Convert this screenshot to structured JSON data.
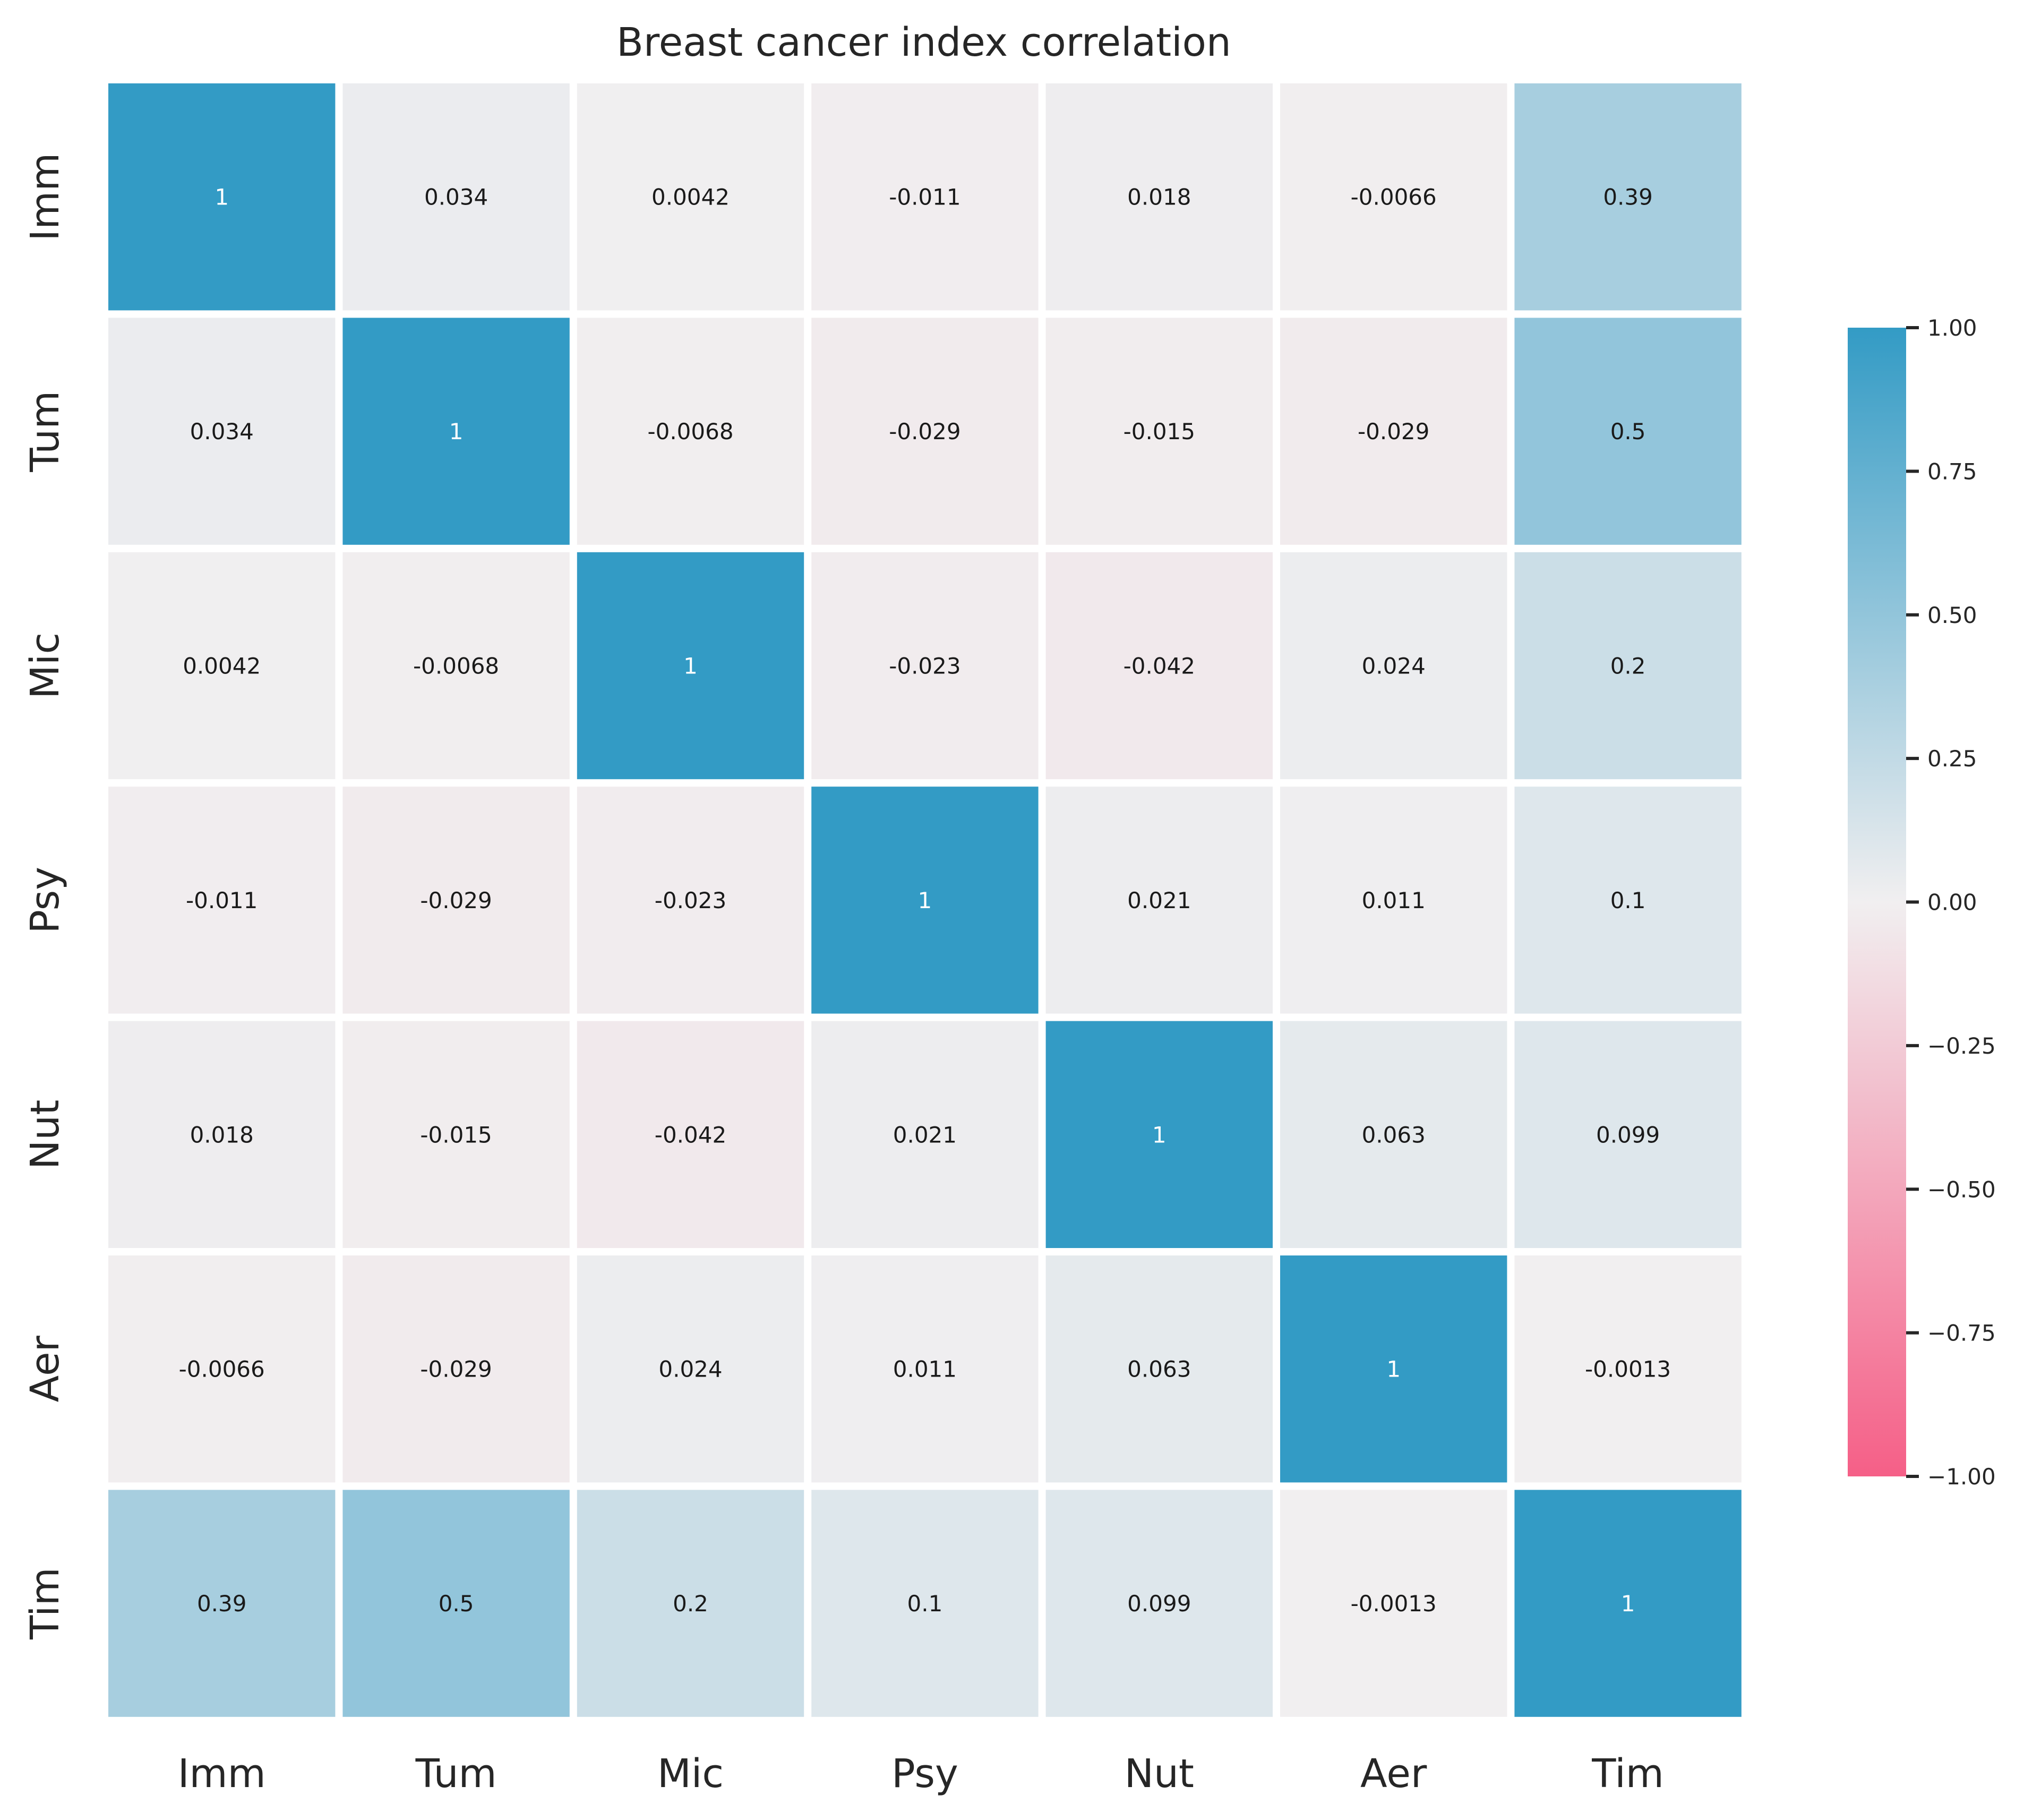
{
  "chart_data": {
    "type": "heatmap",
    "title": "Breast cancer index correlation",
    "x_labels": [
      "Imm",
      "Tum",
      "Mic",
      "Psy",
      "Nut",
      "Aer",
      "Tim"
    ],
    "y_labels": [
      "Imm",
      "Tum",
      "Mic",
      "Psy",
      "Nut",
      "Aer",
      "Tim"
    ],
    "values": [
      [
        1,
        0.034,
        0.0042,
        -0.011,
        0.018,
        -0.0066,
        0.39
      ],
      [
        0.034,
        1,
        -0.0068,
        -0.029,
        -0.015,
        -0.029,
        0.5
      ],
      [
        0.0042,
        -0.0068,
        1,
        -0.023,
        -0.042,
        0.024,
        0.2
      ],
      [
        -0.011,
        -0.029,
        -0.023,
        1,
        0.021,
        0.011,
        0.1
      ],
      [
        0.018,
        -0.015,
        -0.042,
        0.021,
        1,
        0.063,
        0.099
      ],
      [
        -0.0066,
        -0.029,
        0.024,
        0.011,
        0.063,
        1,
        -0.0013
      ],
      [
        0.39,
        0.5,
        0.2,
        0.1,
        0.099,
        -0.0013,
        1
      ]
    ],
    "cell_labels": [
      [
        "1",
        "0.034",
        "0.0042",
        "-0.011",
        "0.018",
        "-0.0066",
        "0.39"
      ],
      [
        "0.034",
        "1",
        "-0.0068",
        "-0.029",
        "-0.015",
        "-0.029",
        "0.5"
      ],
      [
        "0.0042",
        "-0.0068",
        "1",
        "-0.023",
        "-0.042",
        "0.024",
        "0.2"
      ],
      [
        "-0.011",
        "-0.029",
        "-0.023",
        "1",
        "0.021",
        "0.011",
        "0.1"
      ],
      [
        "0.018",
        "-0.015",
        "-0.042",
        "0.021",
        "1",
        "0.063",
        "0.099"
      ],
      [
        "-0.0066",
        "-0.029",
        "0.024",
        "0.011",
        "0.063",
        "1",
        "-0.0013"
      ],
      [
        "0.39",
        "0.5",
        "0.2",
        "0.1",
        "0.099",
        "-0.0013",
        "1"
      ]
    ],
    "colorbar": {
      "range": [
        -1,
        1
      ],
      "ticks": [
        1.0,
        0.75,
        0.5,
        0.25,
        0.0,
        -0.25,
        -0.5,
        -0.75,
        -1.0
      ],
      "tick_labels": [
        "1.00",
        "0.75",
        "0.50",
        "0.25",
        "0.00",
        "−0.25",
        "−0.50",
        "−0.75",
        "−1.00"
      ]
    },
    "colors": {
      "high": "#339bc5",
      "mid": "#f1eff0",
      "low": "#f55f87",
      "text_dark": "#1a1a1a",
      "text_light": "#ffffff",
      "gap": "#ffffff"
    }
  }
}
